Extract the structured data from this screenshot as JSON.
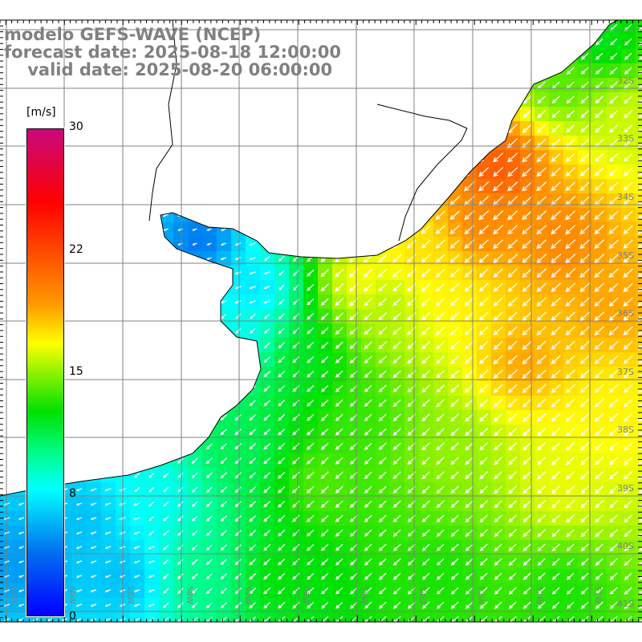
{
  "title": {
    "line1": "modelo GEFS-WAVE (NCEP)",
    "line2": "forecast date: 2025-08-18 12:00:00",
    "line3": "    valid date: 2025-08-20 06:00:00"
  },
  "colorbar": {
    "unit": "[m/s]",
    "labels": [
      "30",
      "22",
      "15",
      "8",
      "0"
    ],
    "stops": [
      {
        "v": 30,
        "color": "#c8087c"
      },
      {
        "v": 25.5,
        "color": "#ff0000"
      },
      {
        "v": 19.2,
        "color": "#ff9900"
      },
      {
        "v": 16.8,
        "color": "#ffff00"
      },
      {
        "v": 12.6,
        "color": "#00e000"
      },
      {
        "v": 9.6,
        "color": "#00ffa0"
      },
      {
        "v": 7.8,
        "color": "#00ffff"
      },
      {
        "v": 3.9,
        "color": "#0070f0"
      },
      {
        "v": 0,
        "color": "#0000ff"
      }
    ]
  },
  "axes": {
    "lon_labels": [
      "61W",
      "60W",
      "59W",
      "58W",
      "57W",
      "56W",
      "55W",
      "54W",
      "53W",
      "52W",
      "51W"
    ],
    "lat_labels": [
      "32S",
      "33S",
      "34S",
      "35S",
      "36S",
      "37S",
      "38S",
      "39S",
      "40S",
      "41S"
    ]
  },
  "field": {
    "variable": "wind speed",
    "unit": "m/s",
    "samples": [
      [
        620,
        210,
        22
      ],
      [
        700,
        300,
        20
      ],
      [
        760,
        380,
        19
      ],
      [
        650,
        450,
        19
      ],
      [
        760,
        520,
        17
      ],
      [
        700,
        600,
        16.5
      ],
      [
        560,
        380,
        17
      ],
      [
        480,
        380,
        15.5
      ],
      [
        450,
        350,
        17
      ],
      [
        520,
        320,
        17.5
      ],
      [
        600,
        280,
        20
      ],
      [
        380,
        450,
        12
      ],
      [
        400,
        600,
        14
      ],
      [
        300,
        560,
        11
      ],
      [
        200,
        620,
        8
      ],
      [
        100,
        650,
        6
      ],
      [
        30,
        700,
        5
      ],
      [
        150,
        720,
        6
      ],
      [
        250,
        720,
        10
      ],
      [
        350,
        720,
        12.5
      ],
      [
        550,
        720,
        13
      ],
      [
        700,
        740,
        13
      ],
      [
        250,
        300,
        4
      ],
      [
        320,
        360,
        7
      ],
      [
        300,
        420,
        8
      ],
      [
        780,
        150,
        16
      ],
      [
        700,
        100,
        14
      ],
      [
        750,
        50,
        12
      ],
      [
        560,
        560,
        15
      ],
      [
        450,
        520,
        13.5
      ]
    ]
  }
}
